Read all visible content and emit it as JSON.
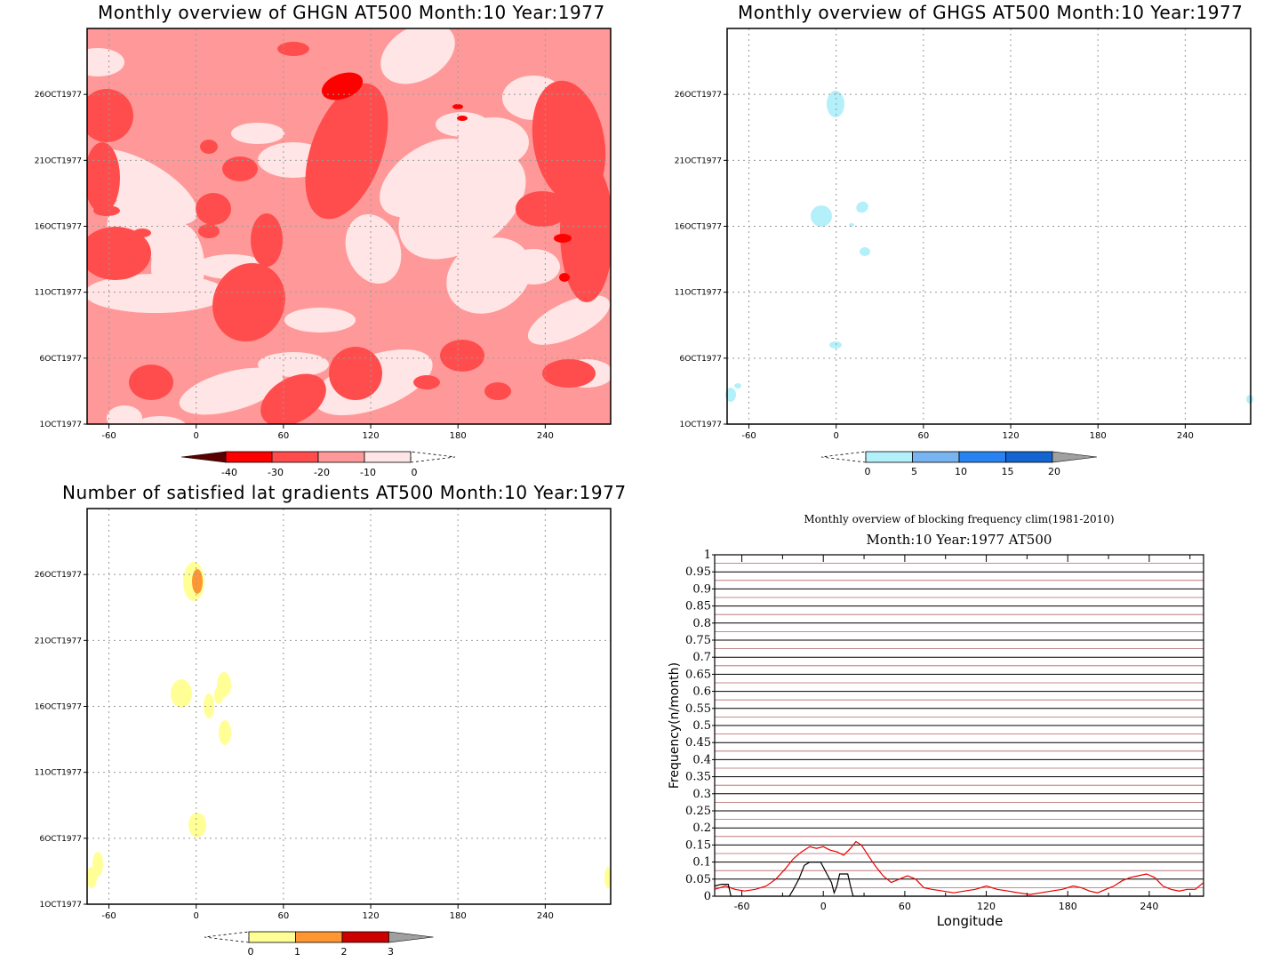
{
  "colors": {
    "red_levels": [
      "#5a0000",
      "#ff0000",
      "#ff4d4d",
      "#ff9999",
      "#ffe5e5"
    ],
    "blue_levels": [
      "#b4f0fa",
      "#78b4f0",
      "#2882f0",
      "#1464d2",
      "#a0a0a0"
    ],
    "yellow_levels": [
      "#ffff96",
      "#ff9632",
      "#cd0000",
      "#a0a0a0"
    ],
    "line_black": "#000000",
    "line_red": "#e60000",
    "grid_red": "#b46464"
  },
  "time_ticks": [
    "26OCT1977",
    "21OCT1977",
    "16OCT1977",
    "11OCT1977",
    "6OCT1977",
    "1OCT1977"
  ],
  "lon_ticks": [
    "-60",
    "0",
    "60",
    "120",
    "180",
    "240"
  ],
  "chart_data": [
    {
      "type": "heatmap",
      "title": "Monthly overview of GHGN AT500 Month:10 Year:1977",
      "x_ticks": [
        "-60",
        "0",
        "60",
        "120",
        "180",
        "240"
      ],
      "y_ticks": [
        "1OCT1977",
        "6OCT1977",
        "11OCT1977",
        "16OCT1977",
        "21OCT1977",
        "26OCT1977"
      ],
      "colorbar_ticks": [
        "-40",
        "-30",
        "-20",
        "-10",
        "0"
      ]
    },
    {
      "type": "heatmap",
      "title": "Monthly overview of GHGS AT500 Month:10 Year:1977",
      "x_ticks": [
        "-60",
        "0",
        "60",
        "120",
        "180",
        "240"
      ],
      "y_ticks": [
        "1OCT1977",
        "6OCT1977",
        "11OCT1977",
        "16OCT1977",
        "21OCT1977",
        "26OCT1977"
      ],
      "colorbar_ticks": [
        "0",
        "5",
        "10",
        "15",
        "20"
      ]
    },
    {
      "type": "heatmap",
      "title": "Number of satisfied lat gradients AT500 Month:10 Year:1977",
      "x_ticks": [
        "-60",
        "0",
        "60",
        "120",
        "180",
        "240"
      ],
      "y_ticks": [
        "1OCT1977",
        "6OCT1977",
        "11OCT1977",
        "16OCT1977",
        "21OCT1977",
        "26OCT1977"
      ],
      "colorbar_ticks": [
        "0",
        "1",
        "2",
        "3"
      ]
    },
    {
      "type": "line",
      "title": "Monthly overview of blocking frequency clim(1981-2010)",
      "subtitle": "Month:10 Year:1977  AT500",
      "xlabel": "Longitude",
      "ylabel": "Frequency(n/month)",
      "xlim": [
        -80,
        280
      ],
      "ylim": [
        0,
        1
      ],
      "x_ticks": [
        -60,
        0,
        60,
        120,
        180,
        240
      ],
      "y_ticks": [
        "0",
        "0.05",
        "0.1",
        "0.15",
        "0.2",
        "0.25",
        "0.3",
        "0.35",
        "0.4",
        "0.45",
        "0.5",
        "0.55",
        "0.6",
        "0.65",
        "0.7",
        "0.75",
        "0.8",
        "0.85",
        "0.9",
        "0.95",
        "1"
      ],
      "series": [
        {
          "color": "#e60000",
          "x": [
            -80,
            -72,
            -65,
            -58,
            -50,
            -42,
            -35,
            -28,
            -22,
            -16,
            -10,
            -5,
            0,
            5,
            10,
            15,
            20,
            24,
            28,
            33,
            38,
            44,
            50,
            56,
            62,
            68,
            74,
            80,
            88,
            96,
            104,
            112,
            120,
            128,
            136,
            144,
            152,
            160,
            168,
            176,
            184,
            190,
            196,
            202,
            208,
            214,
            220,
            226,
            232,
            238,
            244,
            250,
            256,
            262,
            268,
            274,
            280
          ],
          "y": [
            0.02,
            0.03,
            0.02,
            0.015,
            0.02,
            0.03,
            0.05,
            0.08,
            0.11,
            0.13,
            0.145,
            0.14,
            0.145,
            0.135,
            0.13,
            0.12,
            0.14,
            0.16,
            0.15,
            0.12,
            0.09,
            0.06,
            0.04,
            0.05,
            0.06,
            0.05,
            0.025,
            0.02,
            0.015,
            0.01,
            0.015,
            0.02,
            0.03,
            0.02,
            0.015,
            0.01,
            0.005,
            0.01,
            0.015,
            0.02,
            0.03,
            0.025,
            0.015,
            0.01,
            0.02,
            0.03,
            0.045,
            0.055,
            0.06,
            0.065,
            0.055,
            0.03,
            0.02,
            0.015,
            0.02,
            0.02,
            0.04
          ]
        },
        {
          "color": "#000000",
          "x": [
            -80,
            -75,
            -70,
            -68,
            -62,
            -25,
            -22,
            -18,
            -14,
            -10,
            -6,
            -2,
            2,
            6,
            8,
            10,
            12,
            14,
            16,
            18,
            20,
            22,
            24,
            280
          ],
          "y": [
            0.03,
            0.035,
            0.035,
            0,
            0,
            0,
            0.02,
            0.05,
            0.09,
            0.1,
            0.1,
            0.1,
            0.07,
            0.04,
            0.01,
            0.03,
            0.065,
            0.065,
            0.065,
            0.065,
            0.03,
            0,
            0,
            0
          ]
        }
      ]
    }
  ],
  "panels": {
    "ghgn": {
      "title": "Monthly overview of GHGN AT500 Month:10 Year:1977"
    },
    "ghgs": {
      "title": "Monthly overview of GHGS AT500 Month:10 Year:1977"
    },
    "grad": {
      "title": "Number of satisfied lat gradients AT500 Month:10 Year:1977"
    },
    "freq": {
      "title": "Monthly overview of blocking frequency clim(1981-2010)",
      "subtitle": "Month:10 Year:1977  AT500",
      "xlabel": "Longitude",
      "ylabel": "Frequency(n/month)"
    }
  }
}
